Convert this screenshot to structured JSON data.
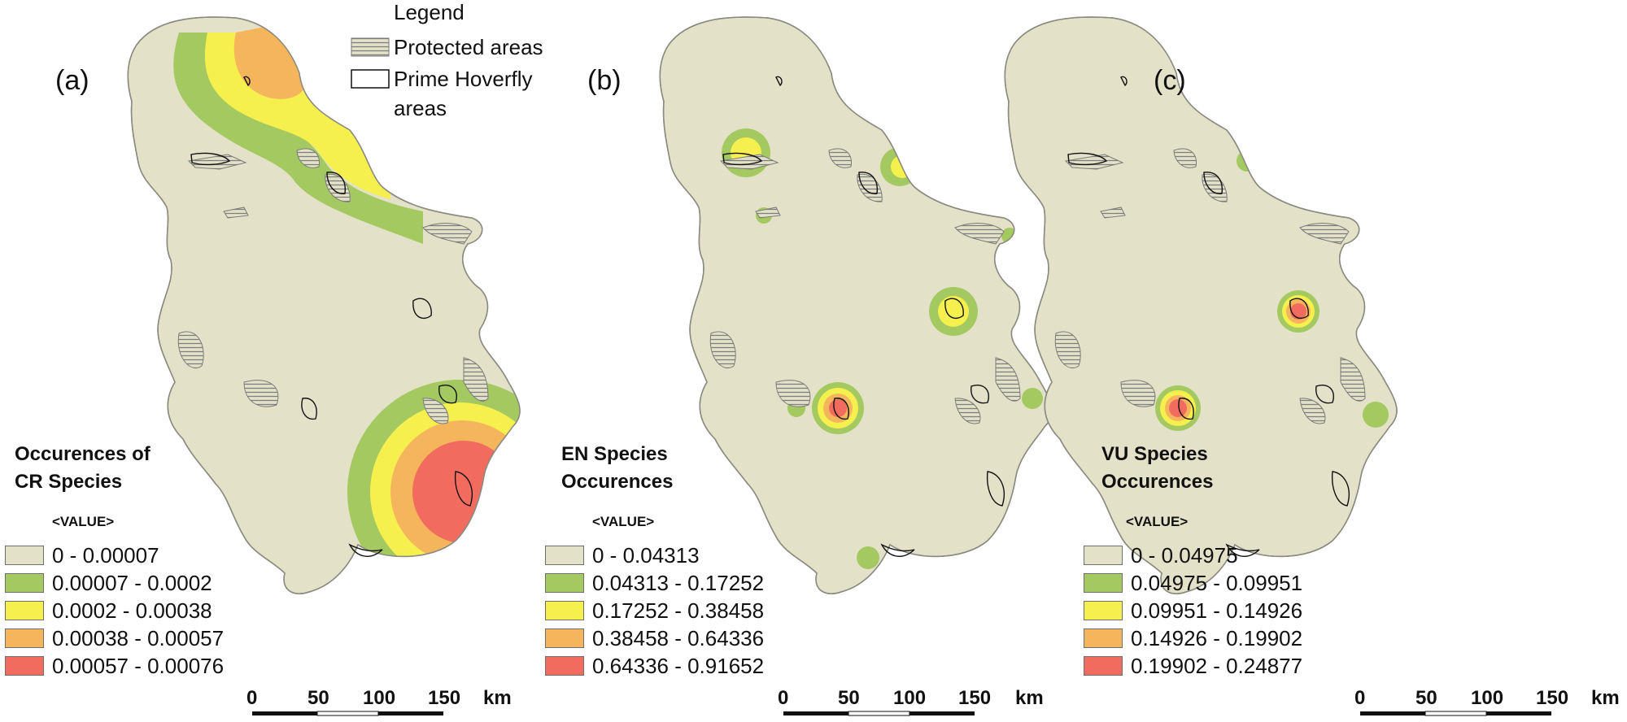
{
  "legend": {
    "title": "Legend",
    "protected": "Protected areas",
    "prime_line1": "Prime Hoverfly",
    "prime_line2": "areas"
  },
  "colors": {
    "land": "#e3e2c8",
    "protected_hatch": "#8c8c8c",
    "outline": "#8a8a80",
    "class": [
      "#e3e2c8",
      "#a4c960",
      "#f6f04e",
      "#f5b55c",
      "#f26b5f"
    ]
  },
  "panels": [
    {
      "label": "(a)",
      "title_line1": "Occurences of",
      "title_line2": "CR Species",
      "value_header": "<VALUE>",
      "classes": [
        "0 - 0.00007",
        "0.00007 - 0.0002",
        "0.0002 - 0.00038",
        "0.00038 - 0.00057",
        "0.00057 - 0.00076"
      ],
      "scale": {
        "ticks": [
          "0",
          "50",
          "100",
          "150"
        ],
        "unit": "km"
      }
    },
    {
      "label": "(b)",
      "title_line1": "EN Species",
      "title_line2": "Occurences",
      "value_header": "<VALUE>",
      "classes": [
        "0 - 0.04313",
        "0.04313 - 0.17252",
        "0.17252 - 0.38458",
        "0.38458 - 0.64336",
        "0.64336 - 0.91652"
      ],
      "scale": {
        "ticks": [
          "0",
          "50",
          "100",
          "150"
        ],
        "unit": "km"
      }
    },
    {
      "label": "(c)",
      "title_line1": "VU Species",
      "title_line2": "Occurences",
      "value_header": "<VALUE>",
      "classes": [
        "0 - 0.04975",
        "0.04975 - 0.09951",
        "0.09951 - 0.14926",
        "0.14926 - 0.19902",
        "0.19902 - 0.24877"
      ],
      "scale": {
        "ticks": [
          "0",
          "50",
          "100",
          "150"
        ],
        "unit": "km"
      }
    }
  ]
}
